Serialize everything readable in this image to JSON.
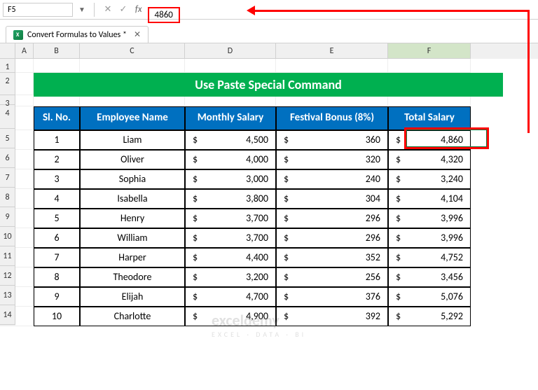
{
  "nameBox": "F5",
  "formulaValue": "4860",
  "tabName": "Convert Formulas to Values *",
  "title": "Use Paste Special Command",
  "columns": [
    "A",
    "B",
    "C",
    "D",
    "E",
    "F"
  ],
  "rowNums": [
    "1",
    "2",
    "3",
    "4",
    "5",
    "6",
    "7",
    "8",
    "9",
    "10",
    "11",
    "12",
    "13",
    "14"
  ],
  "headers": {
    "sl": "Sl. No.",
    "emp": "Employee Name",
    "sal": "Monthly Salary",
    "bonus": "Festival Bonus (8%)",
    "total": "Total Salary"
  },
  "rows": [
    {
      "n": "1",
      "name": "Liam",
      "sal": "4,500",
      "bonus": "360",
      "total": "4,860"
    },
    {
      "n": "2",
      "name": "Oliver",
      "sal": "4,000",
      "bonus": "320",
      "total": "4,320"
    },
    {
      "n": "3",
      "name": "Sophia",
      "sal": "3,000",
      "bonus": "240",
      "total": "3,240"
    },
    {
      "n": "4",
      "name": "Isabella",
      "sal": "3,800",
      "bonus": "304",
      "total": "4,104"
    },
    {
      "n": "5",
      "name": "Henry",
      "sal": "3,700",
      "bonus": "296",
      "total": "3,996"
    },
    {
      "n": "6",
      "name": "William",
      "sal": "3,700",
      "bonus": "296",
      "total": "3,996"
    },
    {
      "n": "7",
      "name": "Harper",
      "sal": "4,400",
      "bonus": "352",
      "total": "4,752"
    },
    {
      "n": "8",
      "name": "Theodore",
      "sal": "3,200",
      "bonus": "256",
      "total": "3,456"
    },
    {
      "n": "9",
      "name": "Elijah",
      "sal": "4,700",
      "bonus": "376",
      "total": "5,076"
    },
    {
      "n": "10",
      "name": "Charlotte",
      "sal": "4,900",
      "bonus": "392",
      "total": "5,292"
    }
  ],
  "currency": "$",
  "watermark": {
    "line1": "exceldemy",
    "line2": "EXCEL · DATA · BI"
  },
  "colors": {
    "titleBg": "#00b050",
    "headerBg": "#0070c0",
    "highlight": "#ff0000",
    "selected": "#107c41"
  }
}
